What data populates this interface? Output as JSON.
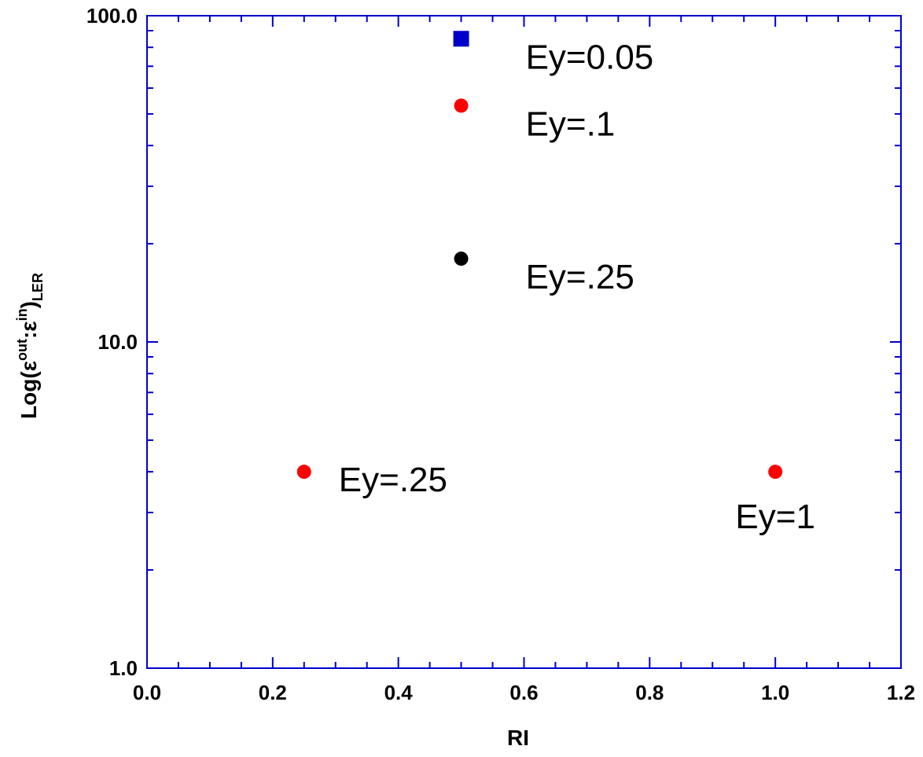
{
  "chart_data": {
    "type": "scatter",
    "title": "",
    "xlabel": "RI",
    "ylabel": {
      "base": "Log(ε",
      "sup1": "out",
      "mid": ":ε",
      "sup2": "in",
      "close": ")",
      "sub": "LER"
    },
    "xlim": [
      0.0,
      1.2
    ],
    "ylim": [
      1.0,
      100.0
    ],
    "yscale": "log",
    "grid": false,
    "x_tick_labels": [
      "0.0",
      "0.2",
      "0.4",
      "0.6",
      "0.8",
      "1.0",
      "1.2"
    ],
    "x_tick_values": [
      0.0,
      0.2,
      0.4,
      0.6,
      0.8,
      1.0,
      1.2
    ],
    "y_tick_labels": [
      "1.0",
      "10.0",
      "100.0"
    ],
    "y_tick_values": [
      1.0,
      10.0,
      100.0
    ],
    "points": [
      {
        "x": 0.5,
        "y": 85.0,
        "marker": "square",
        "color": "#0000cc",
        "label": "Ey=0.05",
        "label_pos": "below-right"
      },
      {
        "x": 0.5,
        "y": 53.0,
        "marker": "circle",
        "color": "#ff0000",
        "label": "Ey=.1",
        "label_pos": "below-right"
      },
      {
        "x": 0.5,
        "y": 18.0,
        "marker": "circle",
        "color": "#000000",
        "label": "Ey=.25",
        "label_pos": "below-right"
      },
      {
        "x": 0.25,
        "y": 4.0,
        "marker": "circle",
        "color": "#ff0000",
        "label": "Ey=.25",
        "label_pos": "right"
      },
      {
        "x": 1.0,
        "y": 4.0,
        "marker": "circle",
        "color": "#ff0000",
        "label": "Ey=1",
        "label_pos": "below"
      }
    ],
    "axis_color": "#0000cc"
  }
}
